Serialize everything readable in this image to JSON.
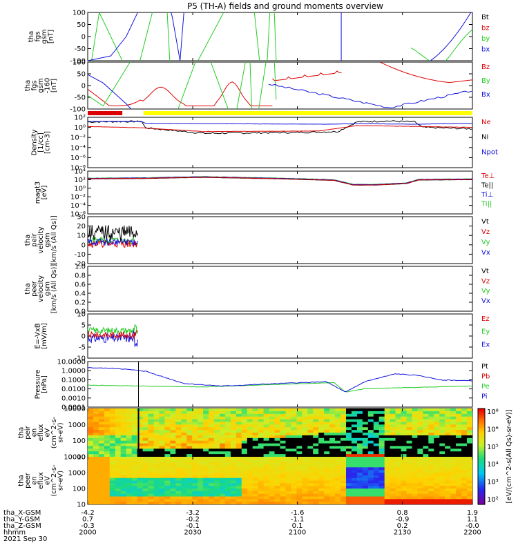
{
  "title": "P5 (TH-A) fields and ground moments overview",
  "colors": {
    "black": "#000000",
    "red": "#dd0000",
    "green": "#22cc22",
    "blue": "#1010dd",
    "yellow": "#ffff00"
  },
  "panels": [
    {
      "ylabel": [
        "tha",
        "fgs",
        "gsm",
        "[nT]"
      ],
      "ticks": [
        "100",
        "50",
        "0",
        "-50",
        "-100"
      ],
      "legend": [
        {
          "t": "Bt",
          "c": "black"
        },
        {
          "t": "bz",
          "c": "red"
        },
        {
          "t": "by",
          "c": "green"
        },
        {
          "t": "bx",
          "c": "blue"
        }
      ]
    },
    {
      "ylabel": [
        "tha",
        "fgs",
        "gsm",
        "-160",
        "[nT]"
      ],
      "ticks": [
        "100",
        "50",
        "0",
        "-50",
        "-100"
      ],
      "legend": [
        {
          "t": "Bz",
          "c": "red"
        },
        {
          "t": "By",
          "c": "green"
        },
        {
          "t": "Bx",
          "c": "blue"
        }
      ]
    },
    {
      "ylabel": [
        "Density",
        "[1/cc]",
        "[cm-3]"
      ],
      "ticks": [
        "10²",
        "10⁰",
        "10⁻²",
        "10⁻⁴",
        "10⁻⁶",
        "10⁻⁸"
      ],
      "legend": [
        {
          "t": "Ne",
          "c": "red"
        },
        {
          "t": "Ni",
          "c": "black"
        },
        {
          "t": "Npot",
          "c": "blue"
        }
      ]
    },
    {
      "ylabel": [
        "magt3",
        "[eV]"
      ],
      "ticks": [
        "10⁴",
        "10²",
        "10⁰",
        "10⁻²",
        "10⁻⁴",
        "10⁻⁶"
      ],
      "legend": [
        {
          "t": "Te⊥",
          "c": "red"
        },
        {
          "t": "Te||",
          "c": "black"
        },
        {
          "t": "Ti⊥",
          "c": "blue"
        },
        {
          "t": "Ti||",
          "c": "green"
        }
      ]
    },
    {
      "ylabel": [
        "tha",
        "peir",
        "velocity",
        "gsm",
        "[km/s (All Qs)]"
      ],
      "ticks": [
        "30",
        "20",
        "10",
        "0",
        "-10",
        "-20"
      ],
      "legend": [
        {
          "t": "Vt",
          "c": "black"
        },
        {
          "t": "Vz",
          "c": "red"
        },
        {
          "t": "Vy",
          "c": "green"
        },
        {
          "t": "Vx",
          "c": "blue"
        }
      ]
    },
    {
      "ylabel": [
        "tha",
        "peer",
        "velocity",
        "gsm",
        "[km/s (All Qs)]"
      ],
      "ticks": [
        "1.0",
        "0.8",
        "0.6",
        "0.4",
        "0.2",
        "0.0"
      ],
      "legend": [
        {
          "t": "Vt",
          "c": "black"
        },
        {
          "t": "Vz",
          "c": "red"
        },
        {
          "t": "Vy",
          "c": "green"
        },
        {
          "t": "Vx",
          "c": "blue"
        }
      ]
    },
    {
      "ylabel": [
        "E=-VxB",
        "[mV/m]"
      ],
      "ticks": [
        "10",
        "5",
        "0",
        "-5",
        "-10"
      ],
      "legend": [
        {
          "t": "Ez",
          "c": "red"
        },
        {
          "t": "Ey",
          "c": "green"
        },
        {
          "t": "Ex",
          "c": "blue"
        }
      ]
    },
    {
      "ylabel": [
        "Pressure",
        "[nPa]"
      ],
      "ticks": [
        "10.0000",
        "1.0000",
        "0.1000",
        "0.0100",
        "0.0010",
        "0.0001"
      ],
      "legend": [
        {
          "t": "Pt",
          "c": "black"
        },
        {
          "t": "Pb",
          "c": "red"
        },
        {
          "t": "Pe",
          "c": "green"
        },
        {
          "t": "Pi",
          "c": "blue"
        }
      ]
    },
    {
      "ylabel": [
        "tha",
        "peir",
        "en",
        "eflux",
        "eV",
        "(cm^2-s-",
        "sr-eV)"
      ],
      "ticks": [
        "10000",
        "1000",
        "100",
        "10"
      ],
      "legend": []
    },
    {
      "ylabel": [
        "tha",
        "peer",
        "en",
        "eflux",
        "eV",
        "(cm^2-s-",
        "sr-eV)"
      ],
      "ticks": [
        "10000",
        "1000",
        "100",
        "10"
      ],
      "legend": []
    }
  ],
  "colorbar": {
    "ticks": [
      "10⁸",
      "10⁶",
      "10⁵",
      "10⁴",
      "10³",
      "10²"
    ],
    "label": "[eV/(cm^2-s(All Qs)-sr-eV)]"
  },
  "xaxis": {
    "row_labels": [
      "tha_X-GSM",
      "tha_Y-GSM",
      "tha_Z-GSM",
      "hhmm",
      "2021 Sep 30"
    ],
    "columns": [
      [
        "-4.2",
        "0.7",
        "-0.3",
        "2000"
      ],
      [
        "-3.2",
        "-0.2",
        "-0.1",
        "2030"
      ],
      [
        "-1.6",
        "-1.1",
        "0.1",
        "2100"
      ],
      [
        "0.8",
        "-0.9",
        "0.2",
        "2130"
      ],
      [
        "1.9",
        "1.1",
        "-0.0",
        "2200"
      ]
    ]
  },
  "chart_data": {
    "type": "line",
    "title": "P5 (TH-A) fields and ground moments overview",
    "x_range": [
      "2000",
      "2200"
    ],
    "x_ticks": [
      "2000",
      "2030",
      "2100",
      "2130",
      "2200"
    ],
    "series_summary": {
      "density_ne_cm3": {
        "x": [
          "2000",
          "2010",
          "2020",
          "2040",
          "2100",
          "2115",
          "2120",
          "2130",
          "2140",
          "2150",
          "2200"
        ],
        "values": [
          100,
          1,
          0.5,
          0.1,
          0.1,
          0.1,
          0.5,
          5,
          5,
          2,
          1
        ]
      },
      "pressure_pi_npa": {
        "x": [
          "2000",
          "2010",
          "2030",
          "2040",
          "2100",
          "2115",
          "2120",
          "2130",
          "2145",
          "2200"
        ],
        "values": [
          3,
          1,
          0.05,
          0.005,
          0.02,
          0.02,
          0.003,
          0.5,
          0.5,
          0.1
        ]
      },
      "velocity_vt_kms": {
        "x": [
          "2000",
          "2005",
          "2010",
          "2012"
        ],
        "values": [
          15,
          10,
          12,
          20
        ]
      }
    }
  }
}
